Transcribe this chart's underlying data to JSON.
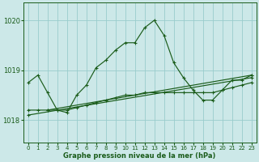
{
  "title": "Graphe pression niveau de la mer (hPa)",
  "bg_color": "#cce8e8",
  "grid_color": "#99cccc",
  "line_color": "#1a5c1a",
  "xlim": [
    -0.5,
    23.5
  ],
  "ylim": [
    1017.55,
    1020.35
  ],
  "yticks": [
    1018,
    1019,
    1020
  ],
  "xticks": [
    0,
    1,
    2,
    3,
    4,
    5,
    6,
    7,
    8,
    9,
    10,
    11,
    12,
    13,
    14,
    15,
    16,
    17,
    18,
    19,
    20,
    21,
    22,
    23
  ],
  "series": [
    {
      "x": [
        0,
        1,
        2,
        3,
        4,
        5,
        6,
        7,
        8,
        9,
        10,
        11,
        12,
        13,
        14,
        15,
        16,
        17,
        18,
        19,
        20,
        21,
        22,
        23
      ],
      "y": [
        1018.75,
        1018.9,
        1018.55,
        1018.2,
        1018.15,
        1018.5,
        1018.7,
        1019.05,
        1019.2,
        1019.4,
        1019.55,
        1019.55,
        1019.85,
        1020.0,
        1019.7,
        1019.15,
        1018.85,
        1018.6,
        1018.4,
        1018.4,
        1018.6,
        1018.8,
        1018.8,
        1018.9
      ]
    },
    {
      "x": [
        0,
        1,
        2,
        3,
        4,
        5,
        6,
        7,
        8,
        9,
        10,
        11,
        12,
        13,
        14,
        15,
        16,
        17,
        18,
        19,
        20,
        21,
        22,
        23
      ],
      "y": [
        1018.2,
        1018.2,
        1018.2,
        1018.2,
        1018.2,
        1018.25,
        1018.3,
        1018.35,
        1018.4,
        1018.45,
        1018.5,
        1018.5,
        1018.55,
        1018.55,
        1018.55,
        1018.55,
        1018.55,
        1018.55,
        1018.55,
        1018.55,
        1018.6,
        1018.65,
        1018.7,
        1018.75
      ]
    },
    {
      "x": [
        0,
        23
      ],
      "y": [
        1018.1,
        1018.85
      ]
    },
    {
      "x": [
        2,
        23
      ],
      "y": [
        1018.2,
        1018.9
      ]
    }
  ]
}
